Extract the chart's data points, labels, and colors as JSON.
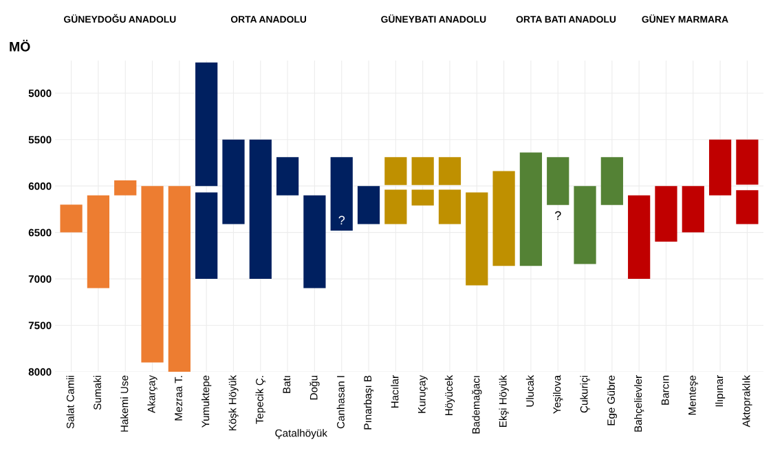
{
  "chart_data": {
    "type": "bar",
    "ylabel": "MÖ",
    "categories": [
      "Salat Camii",
      "Sumaki",
      "Hakemi Use",
      "Akarçay",
      "Mezraa T.",
      "Yumuktepe",
      "Köşk Höyük",
      "Tepecik Ç.",
      "Batı",
      "Doğu",
      "Canhasan I",
      "Pınarbaşı B",
      "Hacılar",
      "Kuruçay",
      "Höyücek",
      "Bademağacı",
      "Ekşi Höyük",
      "Ulucak",
      "Yeşilova",
      "Çukuriçi",
      "Ege Gübre",
      "Bahçelievler",
      "Barcın",
      "Menteşe",
      "Ilıpınar",
      "Aktopraklık"
    ],
    "series": [
      {
        "colors": [
          "#ed7d31",
          "#ed7d31",
          "#ed7d31",
          "#ed7d31",
          "#ed7d31",
          "#002060",
          "#002060",
          "#002060",
          "#002060",
          "#002060",
          "#002060",
          "#002060",
          "#bf9000",
          "#bf9000",
          "#bf9000",
          "#bf9000",
          "#bf9000",
          "#548235",
          "#548235",
          "#548235",
          "#548235",
          "#c00000",
          "#c00000",
          "#c00000",
          "#c00000",
          "#c00000"
        ],
        "base": [
          6200,
          6100,
          5940,
          6000,
          6000,
          4670,
          5500,
          5500,
          5690,
          6100,
          5690,
          6000,
          5690,
          5690,
          5690,
          6070,
          5840,
          5640,
          5690,
          6000,
          5690,
          6100,
          6000,
          6000,
          5500,
          5500
        ],
        "values": [
          300,
          1000,
          160,
          1900,
          2000,
          1330,
          910,
          1500,
          410,
          1000,
          790,
          410,
          300,
          300,
          300,
          1000,
          1020,
          1220,
          515,
          840,
          515,
          900,
          600,
          500,
          600,
          485
        ]
      },
      {
        "colors": [
          "#ed7d31",
          "#ed7d31",
          "#ed7d31",
          "#ed7d31",
          "#ed7d31",
          "#002060",
          "#002060",
          "#002060",
          "#002060",
          "#002060",
          "#002060",
          "#002060",
          "#bf9000",
          "#bf9000",
          "#bf9000",
          "#bf9000",
          "#bf9000",
          "#548235",
          "#548235",
          "#548235",
          "#548235",
          "#c00000",
          "#c00000",
          "#c00000",
          "#c00000",
          "#c00000"
        ],
        "base": [
          null,
          null,
          null,
          null,
          null,
          6070,
          null,
          null,
          null,
          null,
          null,
          null,
          6040,
          6040,
          6040,
          null,
          null,
          null,
          null,
          null,
          null,
          null,
          null,
          null,
          null,
          6045
        ],
        "values": [
          null,
          null,
          null,
          null,
          null,
          930,
          null,
          null,
          null,
          null,
          null,
          null,
          370,
          170,
          370,
          null,
          null,
          null,
          null,
          null,
          null,
          null,
          null,
          null,
          null,
          365
        ]
      }
    ],
    "ylim": [
      8000,
      4650
    ],
    "yticks": [
      5000,
      5500,
      6000,
      6500,
      7000,
      7500,
      8000
    ],
    "grid": true,
    "annotations": [
      "GÜNEYDOĞU ANADOLU",
      "ORTA ANADOLU",
      "GÜNEYBATI ANADOLU",
      "ORTA BATI ANADOLU",
      "GÜNEY MARMARA",
      "Çatalhöyük",
      "?",
      "?"
    ]
  }
}
